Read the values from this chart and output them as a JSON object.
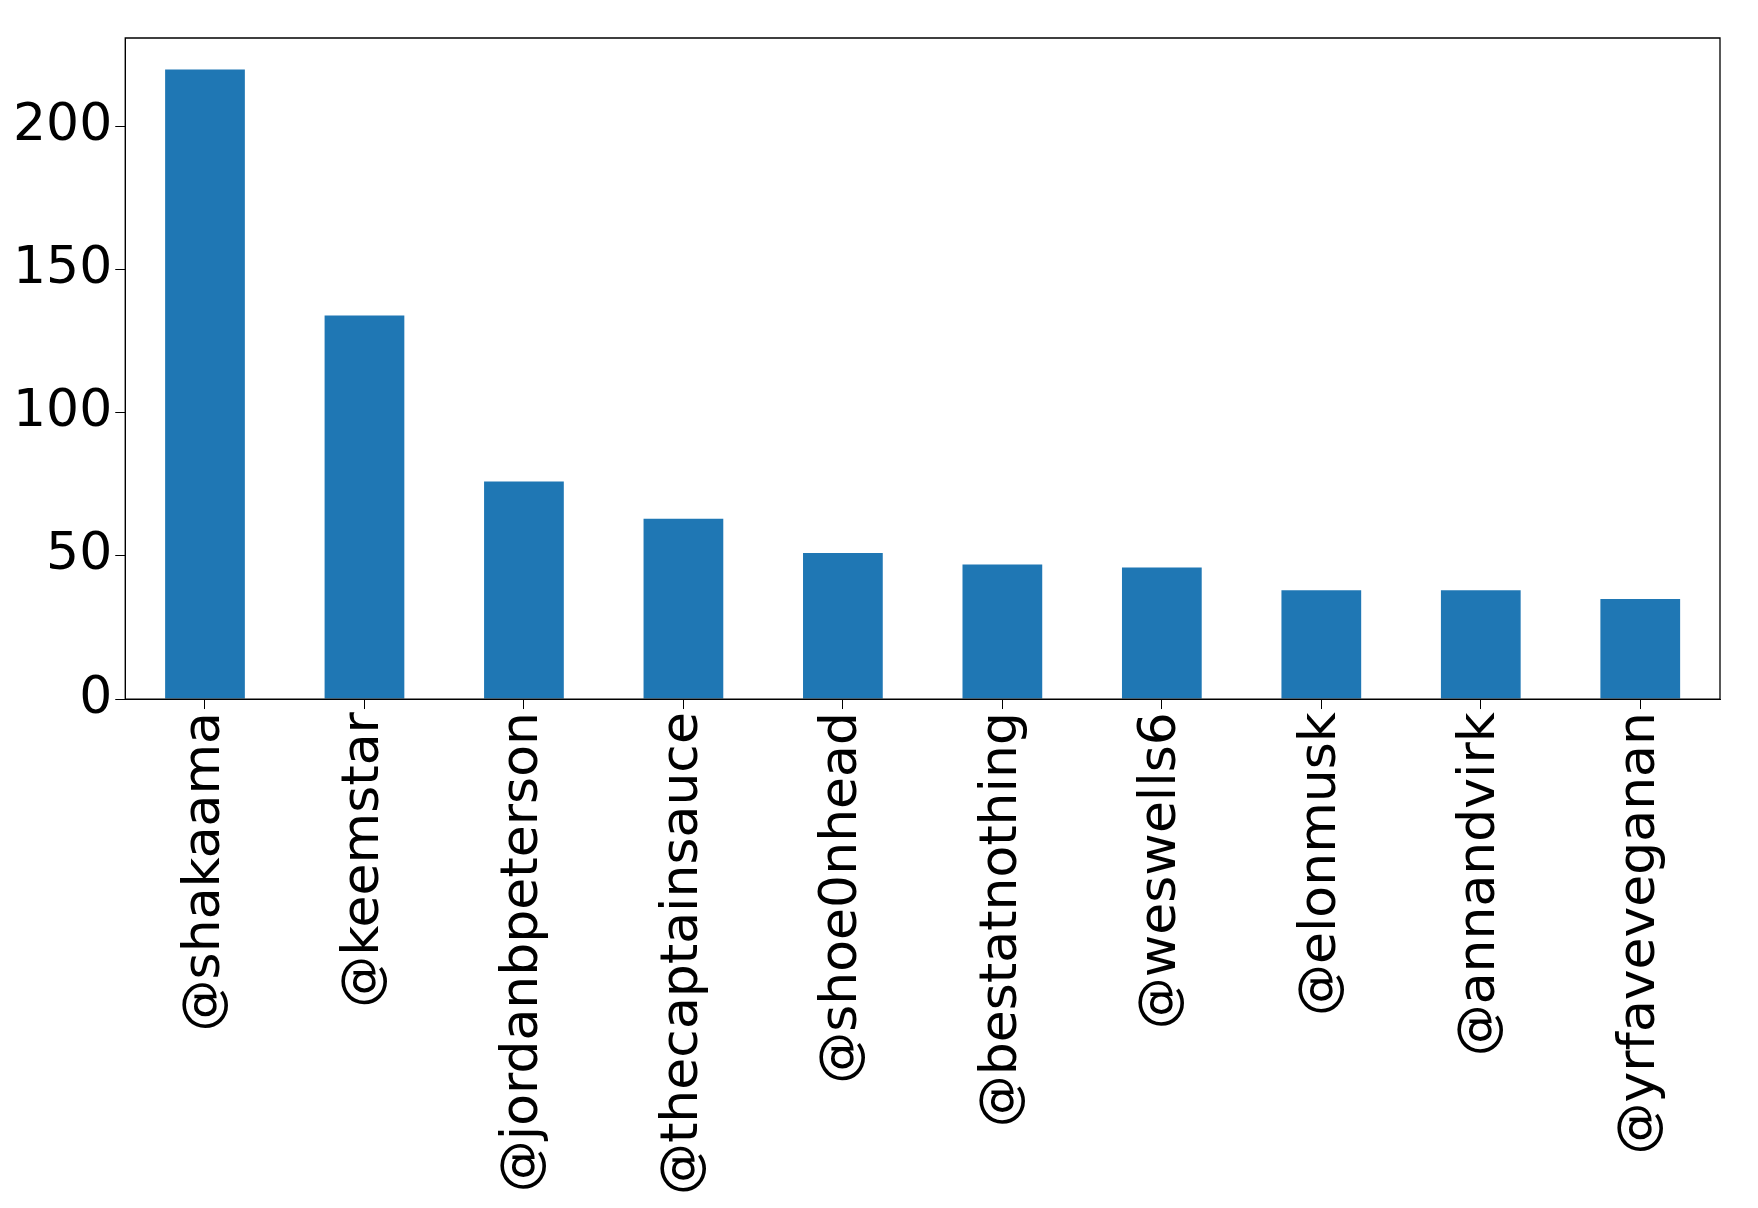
{
  "chart_data": {
    "type": "bar",
    "categories": [
      "@shakaama",
      "@keemstar",
      "@jordanbpeterson",
      "@thecaptainsauce",
      "@shoe0nhead",
      "@bestatnothing",
      "@weswells6",
      "@elonmusk",
      "@annandvirk",
      "@yrfaveveganan"
    ],
    "values": [
      220,
      134,
      76,
      63,
      51,
      47,
      46,
      38,
      38,
      35
    ],
    "color": "#1f77b4",
    "ylim": [
      0,
      231
    ],
    "yticks": [
      0,
      50,
      100,
      150,
      200
    ],
    "legend": false
  }
}
